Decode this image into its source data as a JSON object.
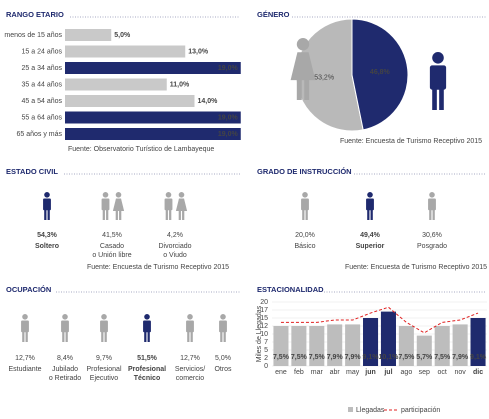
{
  "chart_data": [
    {
      "type": "hbar",
      "title": "RANGO ETARIO",
      "categories": [
        "menos de 15 años",
        "15 a 24 años",
        "25 a 34 años",
        "35 a 44 años",
        "45 a 54 años",
        "55 a 64 años",
        "65 años y más"
      ],
      "values": [
        5,
        13,
        19,
        11,
        14,
        19,
        19
      ],
      "value_labels": [
        "5,0%",
        "13,0%",
        "19,0%",
        "11,0%",
        "14,0%",
        "19,0%",
        "19,0%"
      ],
      "colors": [
        "#c9c9c9",
        "#c9c9c9",
        "#1f2a6e",
        "#c9c9c9",
        "#c9c9c9",
        "#1f2a6e",
        "#1f2a6e"
      ],
      "xlim": [
        0,
        20
      ],
      "source": "Fuente: Observatorio Turístico de Lambayeque"
    },
    {
      "type": "pie",
      "title": "GÉNERO",
      "values": [
        53.2,
        46.8
      ],
      "value_labels": [
        "53,2%",
        "46,8%"
      ],
      "colors": [
        "#b9b9b9",
        "#1f2a6e"
      ],
      "source": "Fuente: Encuesta de Turismo Receptivo 2015"
    },
    {
      "type": "bar",
      "title": "ESTACIONALIDAD",
      "y_label": "Miles de Llegadas",
      "categories": [
        "ene",
        "feb",
        "mar",
        "abr",
        "may",
        "jun",
        "jul",
        "ago",
        "sep",
        "oct",
        "nov",
        "dic"
      ],
      "ylim": [
        0,
        20
      ],
      "yticks": [
        0,
        {
          "value": 2.5,
          "label": "2"
        },
        5,
        {
          "value": 7.5,
          "label": "7"
        },
        10,
        {
          "value": 12.5,
          "label": "12"
        },
        15,
        {
          "value": 17.5,
          "label": "17"
        },
        20
      ],
      "y2lim": [
        0,
        11
      ],
      "grid": true,
      "series": [
        {
          "name": "Llegadas",
          "color": "#bdbdbd",
          "colors": [
            "#bdbdbd",
            "#bdbdbd",
            "#bdbdbd",
            "#bdbdbd",
            "#bdbdbd",
            "#1f2a6e",
            "#1f2a6e",
            "#bdbdbd",
            "#bdbdbd",
            "#bdbdbd",
            "#bdbdbd",
            "#1f2a6e"
          ],
          "values": [
            12.5,
            12.5,
            12.5,
            13,
            13,
            15,
            17,
            12.5,
            9.5,
            12.5,
            13,
            15
          ]
        },
        {
          "name": "participación",
          "type": "line",
          "axis": "y2",
          "color": "#e02020",
          "values": [
            7.5,
            7.5,
            7.5,
            7.9,
            7.9,
            9.1,
            10.1,
            7.5,
            5.7,
            7.5,
            7.9,
            9.1
          ],
          "value_labels": [
            "7,5%",
            "7,5%",
            "7,5%",
            "7,9%",
            "7,9%",
            "9,1%",
            "10,1%",
            "7,5%",
            "5,7%",
            "7,5%",
            "7,9%",
            "9,1%"
          ]
        }
      ]
    }
  ],
  "estado_civil": {
    "title": "ESTADO CIVIL",
    "source": "Fuente: Encuesta de Turismo Receptivo 2015",
    "items": [
      {
        "value": "54,3%",
        "label": [
          "Soltero"
        ],
        "highlight": true
      },
      {
        "value": "41,5%",
        "label": [
          "Casado",
          "o Unión libre"
        ],
        "highlight": false
      },
      {
        "value": "4,2%",
        "label": [
          "Divorciado",
          "o Viudo"
        ],
        "highlight": false
      }
    ]
  },
  "grado_instruccion": {
    "title": "GRADO DE INSTRUCCIÓN",
    "source": "Fuente: Encuesta de Turismo Receptivo 2015",
    "items": [
      {
        "value": "20,0%",
        "label": [
          "Básico"
        ],
        "highlight": false
      },
      {
        "value": "49,4%",
        "label": [
          "Superior"
        ],
        "highlight": true
      },
      {
        "value": "30,6%",
        "label": [
          "Posgrado"
        ],
        "highlight": false
      }
    ]
  },
  "ocupacion": {
    "title": "OCUPACIÓN",
    "items": [
      {
        "value": "12,7%",
        "label": [
          "Estudiante"
        ],
        "highlight": false
      },
      {
        "value": "8,4%",
        "label": [
          "Jubilado",
          "o Retirado"
        ],
        "highlight": false
      },
      {
        "value": "9,7%",
        "label": [
          "Profesional",
          "Ejecutivo"
        ],
        "highlight": false
      },
      {
        "value": "51,5%",
        "label": [
          "Profesional",
          "Técnico"
        ],
        "highlight": true
      },
      {
        "value": "12,7%",
        "label": [
          "Servicios/",
          "comercio"
        ],
        "highlight": false
      },
      {
        "value": "5,0%",
        "label": [
          "Otros"
        ],
        "highlight": false
      }
    ]
  }
}
